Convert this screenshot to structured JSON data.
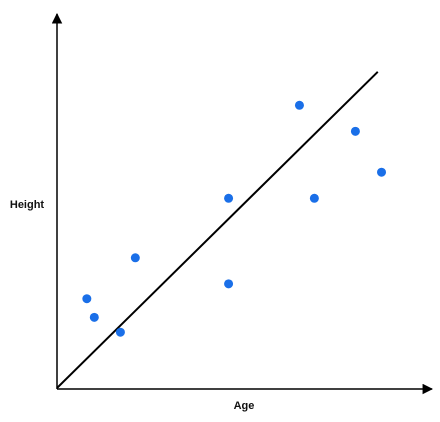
{
  "chart_data": {
    "type": "scatter",
    "xlabel": "Age",
    "ylabel": "Height",
    "x": [
      0.8,
      1.0,
      1.7,
      2.1,
      4.6,
      4.6,
      6.5,
      6.9,
      8.0,
      8.7
    ],
    "values": [
      2.4,
      1.9,
      1.5,
      3.5,
      5.1,
      2.8,
      7.6,
      5.1,
      6.9,
      5.8
    ],
    "color": "#1a6fe8",
    "fit_line": {
      "x": [
        0,
        8.6
      ],
      "values": [
        0,
        8.5
      ],
      "color": "#000000"
    },
    "xlim": [
      0,
      10
    ],
    "ylim": [
      0,
      10
    ],
    "grid": false
  }
}
